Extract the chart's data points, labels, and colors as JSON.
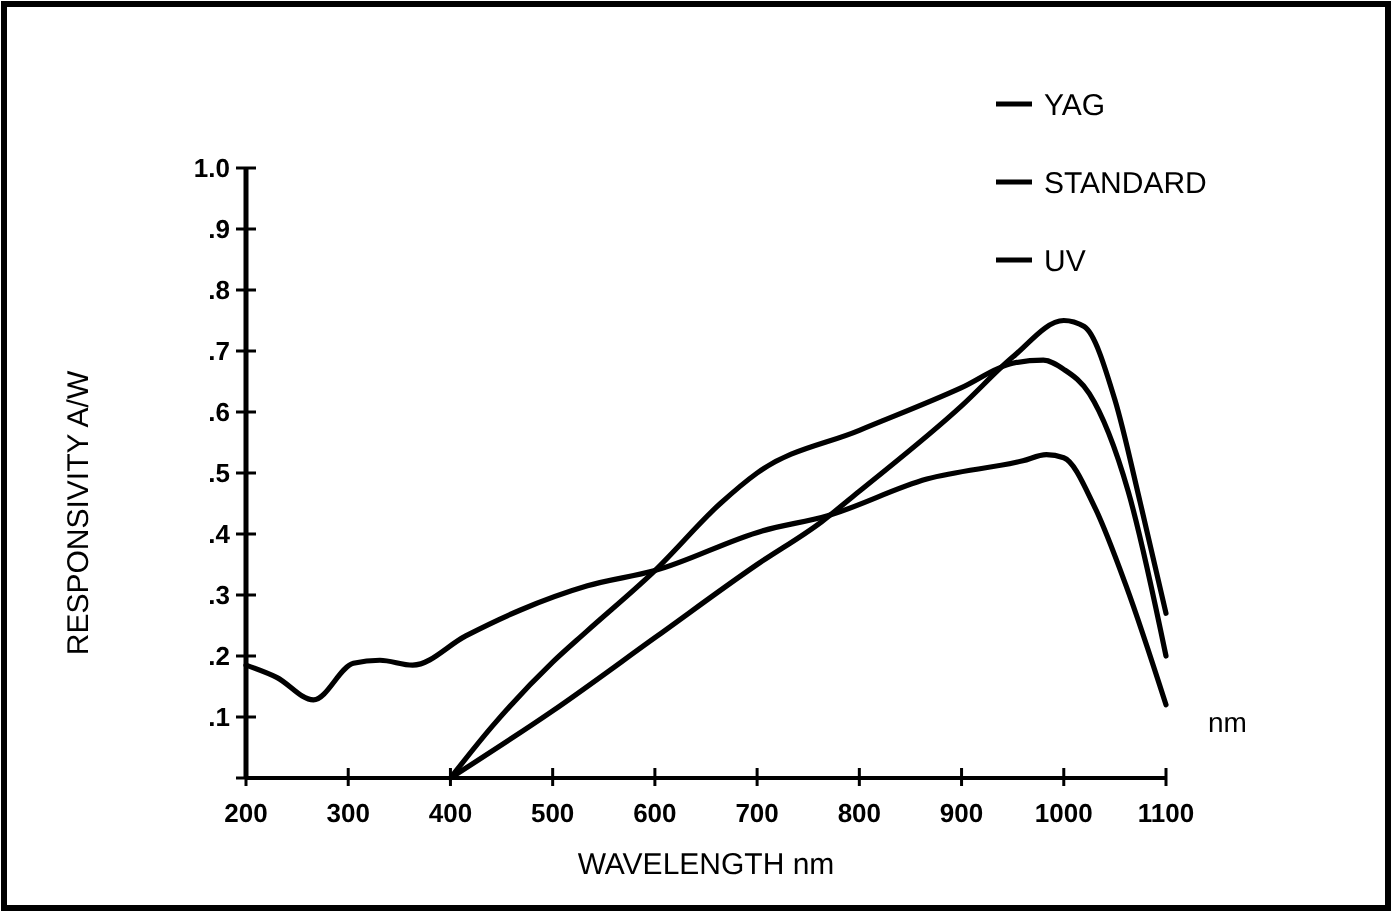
{
  "chart_data": {
    "type": "line",
    "xlabel": "WAVELENGTH nm",
    "ylabel": "RESPONSIVITY A/W",
    "xlim": [
      200,
      1100
    ],
    "xticks": [
      200,
      300,
      400,
      500,
      600,
      700,
      800,
      900,
      1000,
      1100
    ],
    "ylim": [
      0,
      1
    ],
    "yticks": [
      {
        "value": 0,
        "label": null
      },
      {
        "value": 0.1,
        "label": ".1"
      },
      {
        "value": 0.2,
        "label": ".2"
      },
      {
        "value": 0.3,
        "label": ".3"
      },
      {
        "value": 0.4,
        "label": ".4"
      },
      {
        "value": 0.5,
        "label": ".5"
      },
      {
        "value": 0.6,
        "label": ".6"
      },
      {
        "value": 0.7,
        "label": ".7"
      },
      {
        "value": 0.8,
        "label": ".8"
      },
      {
        "value": 0.9,
        "label": ".9"
      },
      {
        "value": 1,
        "label": "1.0"
      }
    ],
    "series": [
      {
        "name": "YAG",
        "color": "#000000",
        "x": [
          400,
          500,
          600,
          700,
          763,
          800,
          900,
          950,
          1000,
          1020,
          1050,
          1075,
          1100
        ],
        "values": [
          0,
          0.11,
          0.23,
          0.35,
          0.42,
          0.47,
          0.61,
          0.69,
          0.75,
          0.74,
          0.62,
          0.45,
          0.27
        ]
      },
      {
        "name": "STANDARD",
        "color": "#000000",
        "x": [
          400,
          441,
          500,
          533,
          600,
          664,
          700,
          800,
          900,
          950,
          980,
          1000,
          1025,
          1063,
          1100
        ],
        "values": [
          0,
          0.085,
          0.19,
          0.24,
          0.34,
          0.45,
          0.5,
          0.57,
          0.64,
          0.68,
          0.685,
          0.67,
          0.63,
          0.47,
          0.2
        ]
      },
      {
        "name": "UV",
        "color": "#000000",
        "x": [
          200,
          230,
          266,
          305,
          331,
          363,
          415,
          468,
          534,
          600,
          705,
          769,
          866,
          960,
          983,
          1000,
          1030,
          1061,
          1100
        ],
        "values": [
          0.185,
          0.165,
          0.128,
          0.188,
          0.193,
          0.185,
          0.233,
          0.275,
          0.315,
          0.34,
          0.405,
          0.43,
          0.49,
          0.52,
          0.53,
          0.525,
          0.445,
          0.315,
          0.12
        ]
      }
    ],
    "annotations": [
      "nm"
    ],
    "legend": "top right",
    "grid": false,
    "marker": "none",
    "line_style": "solid"
  }
}
